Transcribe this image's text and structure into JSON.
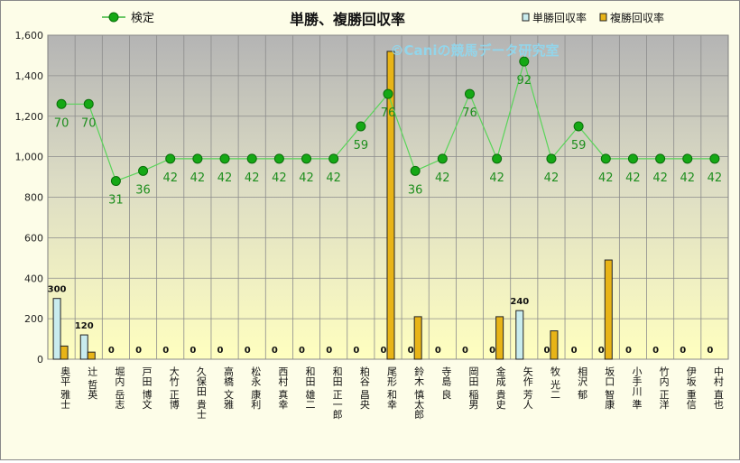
{
  "chart_data": {
    "type": "bar",
    "title": "単勝、複勝回収率",
    "watermark": "©Caniの競馬データ研究室",
    "categories": [
      "奥平 雅士",
      "辻 哲英",
      "堀内 岳志",
      "戸田 博文",
      "大竹 正博",
      "久保田 貴士",
      "高橋 文雅",
      "松永 康利",
      "西村 真幸",
      "和田 雄二",
      "和田 正一郎",
      "粕谷 昌央",
      "尾形 和幸",
      "鈴木 慎太郎",
      "寺島 良",
      "岡田 稲男",
      "金成 貴史",
      "矢作 芳人",
      "牧 光二",
      "相沢 郁",
      "坂口 智康",
      "小手川 準",
      "竹内 正洋",
      "伊坂 重信",
      "中村 直也"
    ],
    "series": [
      {
        "name": "単勝回収率",
        "kind": "bar",
        "color": "#c9ecee",
        "values": [
          300,
          120,
          0,
          0,
          0,
          0,
          0,
          0,
          0,
          0,
          0,
          0,
          0,
          0,
          0,
          0,
          0,
          240,
          0,
          0,
          0,
          0,
          0,
          0,
          0
        ],
        "labels": [
          "300",
          "120",
          "0",
          "0",
          "0",
          "0",
          "0",
          "0",
          "0",
          "0",
          "0",
          "0",
          "0",
          "0",
          "0",
          "0",
          "0",
          "240",
          "0",
          "0",
          "0",
          "0",
          "0",
          "0",
          "0"
        ]
      },
      {
        "name": "複勝回収率",
        "kind": "bar",
        "color": "#e8b417",
        "values": [
          65,
          35,
          0,
          0,
          0,
          0,
          0,
          0,
          0,
          0,
          0,
          0,
          1520,
          210,
          0,
          0,
          210,
          0,
          140,
          0,
          490,
          0,
          0,
          0,
          0
        ]
      },
      {
        "name": "検定",
        "kind": "line",
        "color": "#3ab53a",
        "values": [
          1260,
          1260,
          880,
          930,
          990,
          990,
          990,
          990,
          990,
          990,
          990,
          1150,
          1310,
          930,
          990,
          1310,
          990,
          1470,
          990,
          1150,
          990,
          990,
          990,
          990,
          990
        ],
        "labels": [
          "70",
          "70",
          "31",
          "36",
          "42",
          "42",
          "42",
          "42",
          "42",
          "42",
          "42",
          "59",
          "76",
          "36",
          "42",
          "76",
          "42",
          "92",
          "42",
          "59",
          "42",
          "42",
          "42",
          "42",
          "42"
        ]
      }
    ],
    "ylim": [
      0,
      1600
    ],
    "yticks": [
      "0",
      "200",
      "400",
      "600",
      "800",
      "1,000",
      "1,200",
      "1,400",
      "1,600"
    ],
    "legend": "top",
    "grid": true
  }
}
